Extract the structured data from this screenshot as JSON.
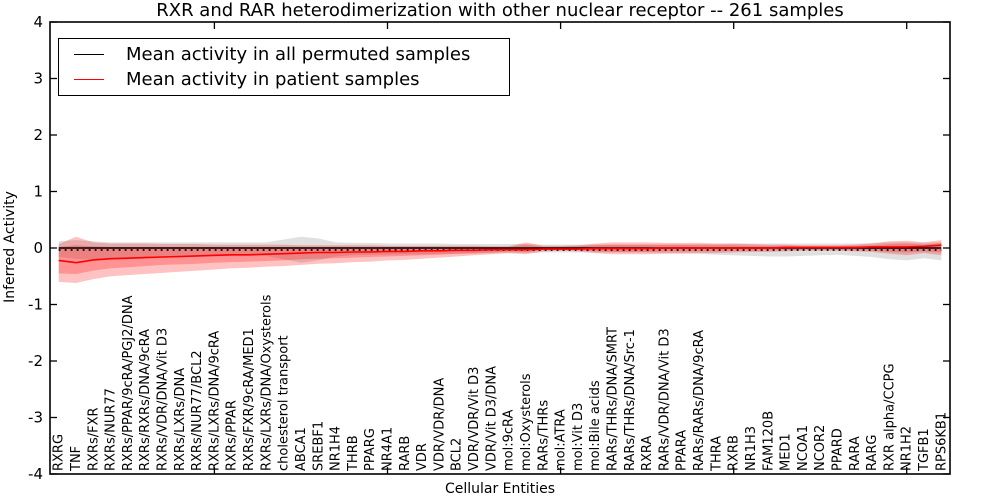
{
  "chart_data": {
    "type": "line",
    "title": "RXR and RAR heterodimerization with other nuclear receptor -- 261 samples",
    "xlabel": "Cellular Entities",
    "ylabel": "Inferred Activity",
    "ylim": [
      -4,
      4
    ],
    "yticks": [
      -4,
      -3,
      -2,
      -1,
      0,
      1,
      2,
      3,
      4
    ],
    "xlim": [
      0.5,
      52.5
    ],
    "x_major_tick_values": [
      10,
      20,
      30,
      40,
      50
    ],
    "grid": false,
    "legend_position": "upper left",
    "categories": [
      "RXRG",
      "TNF",
      "RXRs/FXR",
      "RXRs/NUR77",
      "RXRs/PPAR/9cRA/PGJ2/DNA",
      "RXRs/RXRs/DNA/9cRA",
      "RXRs/VDR/DNA/Vit D3",
      "RXRs/LXRs/DNA",
      "RXRs/NUR77/BCL2",
      "RXRs/LXRs/DNA/9cRA",
      "RXRs/PPAR",
      "RXRs/FXR/9cRA/MED1",
      "RXRs/LXRs/DNA/Oxysterols",
      "cholesterol transport",
      "ABCA1",
      "SREBF1",
      "NR1H4",
      "THRB",
      "PPARG",
      "NR4A1",
      "RARB",
      "VDR",
      "VDR/VDR/DNA",
      "BCL2",
      "VDR/VDR/Vit D3",
      "VDR/Vit D3/DNA",
      "mol:9cRA",
      "mol:Oxysterols",
      "RARs/THRs",
      "mol:ATRA",
      "mol:Vit D3",
      "mol:Bile acids",
      "RARs/THRs/DNA/SMRT",
      "RARs/THRs/DNA/Src-1",
      "RXRA",
      "RARs/VDR/DNA/Vit D3",
      "PPARA",
      "RARs/RARs/DNA/9cRA",
      "THRA",
      "RXRB",
      "NR1H3",
      "FAM120B",
      "MED1",
      "NCOA1",
      "NCOR2",
      "PPARD",
      "RARA",
      "RARG",
      "RXR alpha/CCPG",
      "NR1H2",
      "TGFB1",
      "RPS6KB1"
    ],
    "series": [
      {
        "name": "Mean activity in all permuted samples",
        "color": "#000000",
        "style": "solid",
        "values": [
          0,
          0,
          0,
          0,
          0,
          0,
          0,
          0,
          0,
          0,
          0,
          0,
          0,
          0,
          0,
          0,
          0,
          0,
          0,
          0,
          0,
          0,
          0,
          0,
          0,
          0,
          0,
          0,
          0,
          0,
          0,
          0,
          0,
          0,
          0,
          0,
          0,
          0,
          0,
          0,
          0,
          0,
          0,
          0,
          0,
          0,
          0,
          0,
          0,
          0,
          0,
          0
        ]
      },
      {
        "name": "Mean activity in patient samples",
        "color": "#ff0000",
        "style": "solid",
        "values": [
          -0.22,
          -0.26,
          -0.21,
          -0.19,
          -0.18,
          -0.17,
          -0.16,
          -0.15,
          -0.14,
          -0.13,
          -0.12,
          -0.12,
          -0.11,
          -0.1,
          -0.09,
          -0.08,
          -0.08,
          -0.07,
          -0.07,
          -0.06,
          -0.06,
          -0.05,
          -0.05,
          -0.04,
          -0.04,
          -0.03,
          -0.03,
          -0.03,
          -0.02,
          -0.02,
          -0.02,
          -0.01,
          -0.01,
          -0.01,
          -0.01,
          0.0,
          0.0,
          0.0,
          0.0,
          0.0,
          0.0,
          0.0,
          0.01,
          0.01,
          0.01,
          0.01,
          0.01,
          0.02,
          0.02,
          0.02,
          0.03,
          0.05
        ]
      }
    ],
    "reference_line": {
      "y": -0.035,
      "color": "#000000",
      "style": "dotted"
    },
    "bands": [
      {
        "name": "permuted-samples-range",
        "color": "#000000",
        "opacity": 0.12,
        "lo": [
          -0.16,
          -0.19,
          -0.21,
          -0.18,
          -0.17,
          -0.16,
          -0.16,
          -0.15,
          -0.15,
          -0.15,
          -0.14,
          -0.14,
          -0.14,
          -0.2,
          -0.26,
          -0.22,
          -0.15,
          -0.13,
          -0.12,
          -0.12,
          -0.11,
          -0.11,
          -0.1,
          -0.1,
          -0.1,
          -0.09,
          -0.09,
          -0.09,
          -0.08,
          -0.08,
          -0.08,
          -0.08,
          -0.08,
          -0.08,
          -0.08,
          -0.09,
          -0.09,
          -0.1,
          -0.12,
          -0.13,
          -0.14,
          -0.15,
          -0.15,
          -0.14,
          -0.13,
          -0.12,
          -0.14,
          -0.16,
          -0.2,
          -0.22,
          -0.18,
          -0.22
        ],
        "hi": [
          0.12,
          0.14,
          0.12,
          0.1,
          0.1,
          0.1,
          0.1,
          0.1,
          0.1,
          0.1,
          0.1,
          0.1,
          0.1,
          0.15,
          0.2,
          0.17,
          0.1,
          0.09,
          0.09,
          0.08,
          0.08,
          0.08,
          0.08,
          0.07,
          0.07,
          0.07,
          0.07,
          0.07,
          0.06,
          0.06,
          0.06,
          0.06,
          0.06,
          0.06,
          0.06,
          0.06,
          0.06,
          0.07,
          0.07,
          0.08,
          0.08,
          0.08,
          0.08,
          0.08,
          0.08,
          0.08,
          0.08,
          0.09,
          0.1,
          0.1,
          0.09,
          0.1
        ]
      },
      {
        "name": "patient-samples-outer-range",
        "color": "#ff0000",
        "opacity": 0.24,
        "lo": [
          -0.6,
          -0.62,
          -0.55,
          -0.5,
          -0.48,
          -0.46,
          -0.44,
          -0.42,
          -0.4,
          -0.38,
          -0.36,
          -0.35,
          -0.33,
          -0.32,
          -0.3,
          -0.28,
          -0.27,
          -0.25,
          -0.24,
          -0.22,
          -0.21,
          -0.19,
          -0.17,
          -0.15,
          -0.13,
          -0.11,
          -0.09,
          -0.11,
          -0.06,
          -0.05,
          -0.06,
          -0.09,
          -0.11,
          -0.11,
          -0.11,
          -0.1,
          -0.1,
          -0.09,
          -0.09,
          -0.08,
          -0.07,
          -0.07,
          -0.06,
          -0.05,
          -0.05,
          -0.05,
          -0.06,
          -0.07,
          -0.1,
          -0.13,
          -0.09,
          -0.13
        ],
        "hi": [
          0.07,
          0.2,
          0.1,
          0.08,
          0.08,
          0.08,
          0.07,
          0.07,
          0.07,
          0.06,
          0.06,
          0.06,
          0.06,
          0.06,
          0.05,
          0.05,
          0.05,
          0.05,
          0.05,
          0.04,
          0.04,
          0.04,
          0.04,
          0.04,
          0.04,
          0.03,
          0.03,
          0.1,
          0.04,
          0.04,
          0.05,
          0.08,
          0.1,
          0.1,
          0.1,
          0.09,
          0.09,
          0.09,
          0.08,
          0.08,
          0.07,
          0.06,
          0.06,
          0.05,
          0.05,
          0.05,
          0.06,
          0.08,
          0.12,
          0.13,
          0.1,
          0.14
        ]
      },
      {
        "name": "patient-samples-inner-range",
        "color": "#ff0000",
        "opacity": 0.24,
        "lo": [
          -0.45,
          -0.46,
          -0.4,
          -0.36,
          -0.34,
          -0.32,
          -0.3,
          -0.29,
          -0.28,
          -0.26,
          -0.25,
          -0.24,
          -0.23,
          -0.22,
          -0.2,
          -0.19,
          -0.18,
          -0.17,
          -0.16,
          -0.15,
          -0.14,
          -0.13,
          -0.12,
          -0.1,
          -0.09,
          -0.08,
          -0.06,
          -0.07,
          -0.04,
          -0.04,
          -0.04,
          -0.06,
          -0.07,
          -0.07,
          -0.07,
          -0.06,
          -0.06,
          -0.06,
          -0.06,
          -0.05,
          -0.05,
          -0.04,
          -0.04,
          -0.03,
          -0.03,
          -0.03,
          -0.04,
          -0.05,
          -0.07,
          -0.08,
          -0.06,
          -0.08
        ],
        "hi": [
          0.02,
          0.05,
          0.03,
          0.02,
          0.02,
          0.02,
          0.02,
          0.02,
          0.02,
          0.02,
          0.02,
          0.02,
          0.02,
          0.02,
          0.02,
          0.02,
          0.02,
          0.02,
          0.02,
          0.02,
          0.02,
          0.02,
          0.02,
          0.02,
          0.02,
          0.02,
          0.02,
          0.06,
          0.02,
          0.02,
          0.03,
          0.05,
          0.06,
          0.06,
          0.06,
          0.06,
          0.06,
          0.05,
          0.05,
          0.05,
          0.04,
          0.04,
          0.04,
          0.03,
          0.03,
          0.03,
          0.04,
          0.05,
          0.07,
          0.08,
          0.06,
          0.09
        ]
      }
    ]
  }
}
